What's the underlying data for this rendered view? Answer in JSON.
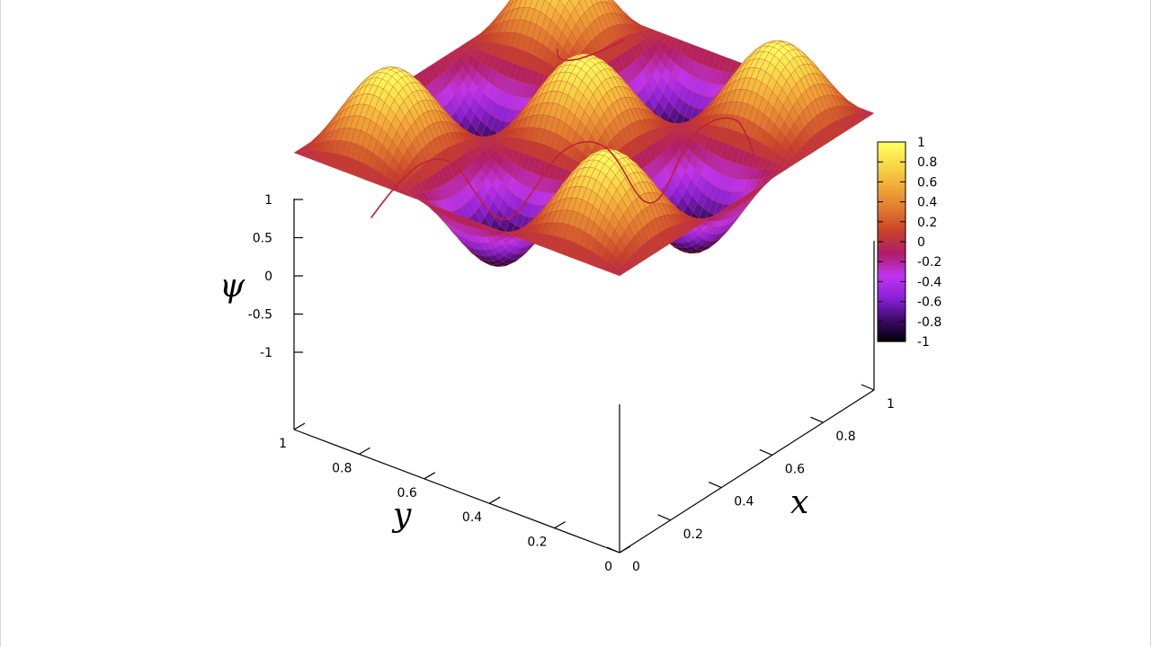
{
  "chart_data": {
    "type": "surface3d",
    "function": "psi(x,y) = sin(3*pi*x) * sin(3*pi*y)",
    "x_range": [
      0,
      1
    ],
    "y_range": [
      0,
      1
    ],
    "z_range": [
      -1,
      1
    ],
    "xlabel": "x",
    "ylabel": "y",
    "zlabel": "ψ",
    "x_ticks": [
      "0",
      "0.2",
      "0.4",
      "0.6",
      "0.8",
      "1"
    ],
    "y_ticks": [
      "0",
      "0.2",
      "0.4",
      "0.6",
      "0.8",
      "1"
    ],
    "z_ticks": [
      "1",
      "0.5",
      "0",
      "-0.5",
      "-1"
    ],
    "colorbar": {
      "range": [
        -1,
        1
      ],
      "ticks": [
        "1",
        "0.8",
        "0.6",
        "0.4",
        "0.2",
        "0",
        "-0.2",
        "-0.4",
        "-0.6",
        "-0.8",
        "-1"
      ],
      "palette": [
        "#000000",
        "#3c0a6a",
        "#8a20d8",
        "#c035f0",
        "#b01c6a",
        "#c8402a",
        "#e07a30",
        "#f0a838",
        "#f8d848",
        "#ffff60"
      ]
    },
    "peaks": [
      {
        "x": 0.1667,
        "y": 0.1667,
        "z": 1
      },
      {
        "x": 0.5,
        "y": 0.1667,
        "z": -1
      },
      {
        "x": 0.8333,
        "y": 0.1667,
        "z": 1
      },
      {
        "x": 0.1667,
        "y": 0.5,
        "z": -1
      },
      {
        "x": 0.5,
        "y": 0.5,
        "z": 1
      },
      {
        "x": 0.8333,
        "y": 0.5,
        "z": -1
      },
      {
        "x": 0.1667,
        "y": 0.8333,
        "z": 1
      },
      {
        "x": 0.5,
        "y": 0.8333,
        "z": -1
      },
      {
        "x": 0.8333,
        "y": 0.8333,
        "z": 1
      }
    ],
    "mesh_color": "#c0392b",
    "annotation_color": "#c0203a"
  }
}
